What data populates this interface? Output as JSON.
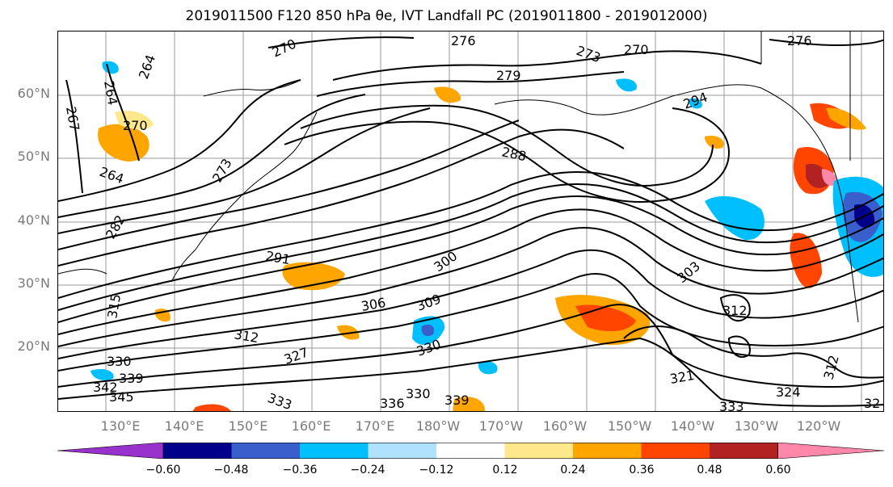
{
  "title": "2019011500 F120 850 hPa θe, IVT Landfall PC (2019011800 - 2019012000)",
  "lat_labels": [
    "60°N",
    "50°N",
    "40°N",
    "30°N",
    "20°N"
  ],
  "lon_labels": [
    "130°E",
    "140°E",
    "150°E",
    "160°E",
    "170°E",
    "180°W",
    "170°W",
    "160°W",
    "150°W",
    "140°W",
    "130°W",
    "120°W"
  ],
  "contour_labels": [
    "276",
    "270",
    "273",
    "270",
    "276",
    "264",
    "264",
    "279",
    "267",
    "270",
    "264",
    "288",
    "294",
    "273",
    "291",
    "300",
    "282",
    "315",
    "306",
    "309",
    "312",
    "330",
    "339",
    "330",
    "312",
    "321",
    "324",
    "333",
    "336",
    "330",
    "339",
    "333",
    "312",
    "345",
    "342",
    "327",
    "32",
    "303"
  ],
  "colorbar": {
    "ticks": [
      "−0.60",
      "−0.48",
      "−0.36",
      "−0.24",
      "−0.12",
      "0.12",
      "0.24",
      "0.36",
      "0.48",
      "0.60"
    ],
    "colors": [
      "#9932cc",
      "#00008b",
      "#3a5fcd",
      "#00bfff",
      "#b0e2ff",
      "#ffffff",
      "#ffe88c",
      "#ffa500",
      "#ff4500",
      "#b22222",
      "#ff88aa"
    ]
  },
  "map_colors": {
    "land": "#ffffff",
    "contour": "#000000",
    "grid": "#9a9a9a"
  }
}
